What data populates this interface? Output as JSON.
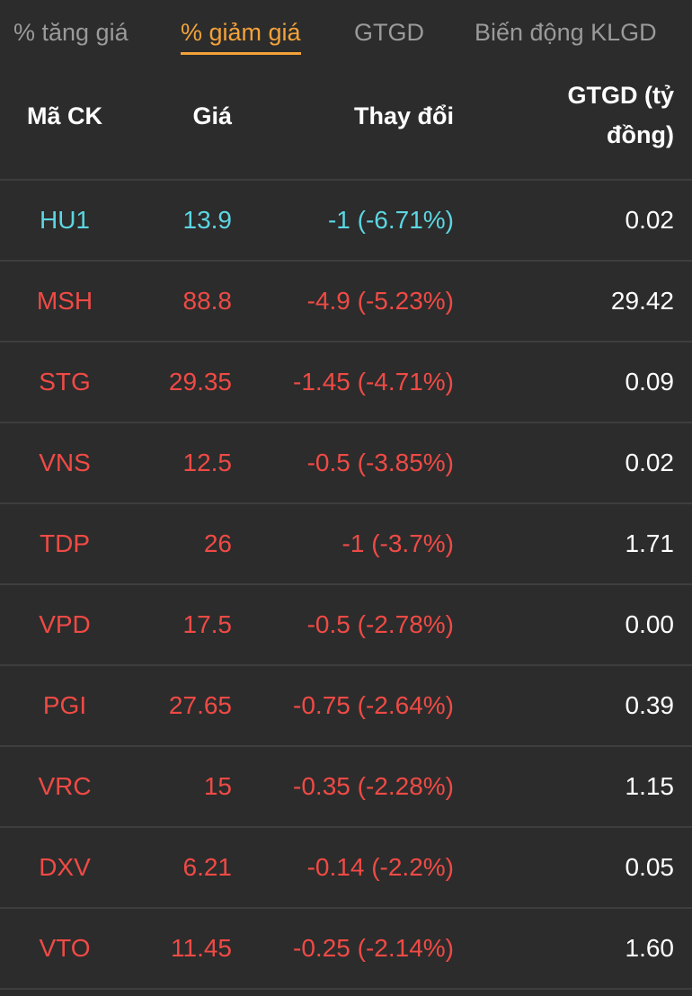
{
  "tabs": {
    "items": [
      "% tăng giá",
      "% giảm giá",
      "GTGD",
      "Biến động KLGD"
    ],
    "active": 1
  },
  "table": {
    "headers": [
      "Mã CK",
      "Giá",
      "Thay đổi",
      "GTGD (tỷ đồng)"
    ],
    "rows": [
      {
        "symbol": "HU1",
        "price": "13.9",
        "change": "-1 (-6.71%)",
        "value": "0.02",
        "color": "#5cd6e2"
      },
      {
        "symbol": "MSH",
        "price": "88.8",
        "change": "-4.9 (-5.23%)",
        "value": "29.42",
        "color": "#f04a45"
      },
      {
        "symbol": "STG",
        "price": "29.35",
        "change": "-1.45 (-4.71%)",
        "value": "0.09",
        "color": "#f04a45"
      },
      {
        "symbol": "VNS",
        "price": "12.5",
        "change": "-0.5 (-3.85%)",
        "value": "0.02",
        "color": "#f04a45"
      },
      {
        "symbol": "TDP",
        "price": "26",
        "change": "-1 (-3.7%)",
        "value": "1.71",
        "color": "#f04a45"
      },
      {
        "symbol": "VPD",
        "price": "17.5",
        "change": "-0.5 (-2.78%)",
        "value": "0.00",
        "color": "#f04a45"
      },
      {
        "symbol": "PGI",
        "price": "27.65",
        "change": "-0.75 (-2.64%)",
        "value": "0.39",
        "color": "#f04a45"
      },
      {
        "symbol": "VRC",
        "price": "15",
        "change": "-0.35 (-2.28%)",
        "value": "1.15",
        "color": "#f04a45"
      },
      {
        "symbol": "DXV",
        "price": "6.21",
        "change": "-0.14 (-2.2%)",
        "value": "0.05",
        "color": "#f04a45"
      },
      {
        "symbol": "VTO",
        "price": "11.45",
        "change": "-0.25 (-2.14%)",
        "value": "1.60",
        "color": "#f04a45"
      }
    ]
  }
}
